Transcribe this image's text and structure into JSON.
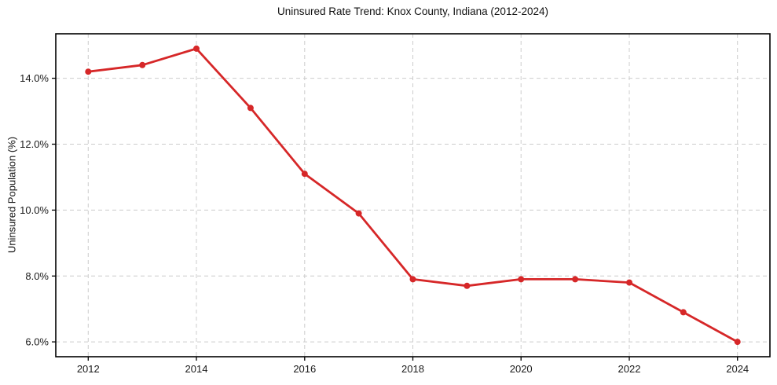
{
  "chart_data": {
    "type": "line",
    "title": "Uninsured Rate Trend: Knox County, Indiana (2012-2024)",
    "xlabel": "",
    "ylabel": "Uninsured Population (%)",
    "series": [
      {
        "name": "Uninsured rate",
        "x": [
          2012,
          2013,
          2014,
          2015,
          2016,
          2017,
          2018,
          2019,
          2020,
          2021,
          2022,
          2023,
          2024
        ],
        "values": [
          14.2,
          14.4,
          14.9,
          13.1,
          11.1,
          9.9,
          7.9,
          7.7,
          7.9,
          7.9,
          7.8,
          6.9,
          6.0
        ]
      }
    ],
    "xlim": [
      2011.4,
      2024.6
    ],
    "ylim": [
      5.55,
      15.35
    ],
    "x_ticks": [
      2012,
      2014,
      2016,
      2018,
      2020,
      2022,
      2024
    ],
    "x_tick_labels": [
      "2012",
      "2014",
      "2016",
      "2018",
      "2020",
      "2022",
      "2024"
    ],
    "y_ticks": [
      6,
      8,
      10,
      12,
      14
    ],
    "y_tick_labels": [
      "6.0%",
      "8.0%",
      "10.0%",
      "12.0%",
      "14.0%"
    ],
    "grid": true,
    "grid_style": "dashed",
    "legend": "none",
    "style": {
      "line_color": "#d62728",
      "marker": "circle",
      "marker_color": "#d62728",
      "grid_color": "#cccccc",
      "spine_color": "#000000",
      "tick_label_color": "#1a1a1a",
      "title_color": "#111111",
      "background": "#ffffff"
    }
  }
}
